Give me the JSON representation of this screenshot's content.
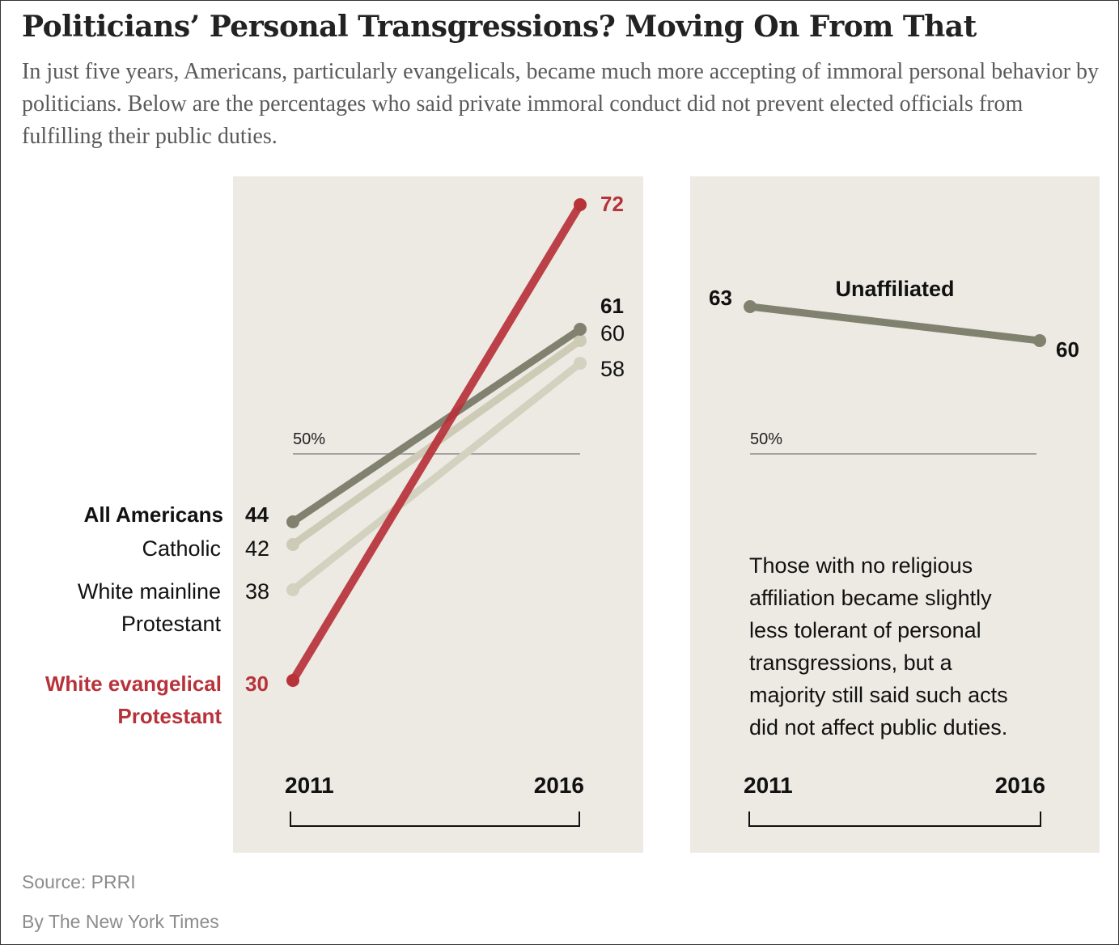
{
  "title": "Politicians’ Personal Transgressions? Moving On From That",
  "subtitle": "In just five years, Americans, particularly evangelicals, became much more accepting of immoral personal behavior by politicians. Below are the percentages who said private immoral conduct did not prevent elected officials from fulfilling their public duties.",
  "source": "Source: PRRI",
  "credit": "By The New York Times",
  "colors": {
    "panel_bg": "#eceae3",
    "all_americans": "#80826f",
    "catholic": "#cdcbb6",
    "white_mainline": "#d3d1bf",
    "white_evangelical": "#b8323a",
    "unaffiliated": "#80826f",
    "reference_line": "#a3a3a3",
    "text_dark": "#111111",
    "text_red": "#b8323a"
  },
  "chart_data": [
    {
      "type": "line",
      "x": [
        "2011",
        "2016"
      ],
      "reference_line": {
        "value": 50,
        "label": "50%"
      },
      "series": [
        {
          "key": "catholic",
          "name": "Catholic",
          "values": [
            42,
            60
          ],
          "labels": [
            "42",
            "60"
          ],
          "bold": false,
          "red": false
        },
        {
          "key": "white_mainline",
          "name_lines": [
            "White mainline",
            "Protestant"
          ],
          "values": [
            38,
            58
          ],
          "labels": [
            "38",
            "58"
          ],
          "bold": false,
          "red": false
        },
        {
          "key": "all_americans",
          "name": "All Americans",
          "values": [
            44,
            61
          ],
          "labels": [
            "44",
            "61"
          ],
          "bold": true,
          "red": false
        },
        {
          "key": "white_evangelical",
          "name_lines": [
            "White evangelical",
            "Protestant"
          ],
          "values": [
            30,
            72
          ],
          "labels": [
            "30",
            "72"
          ],
          "bold": true,
          "red": true
        }
      ]
    },
    {
      "type": "line",
      "x": [
        "2011",
        "2016"
      ],
      "reference_line": {
        "value": 50,
        "label": "50%"
      },
      "series": [
        {
          "key": "unaffiliated",
          "name": "Unaffiliated",
          "values": [
            63,
            60
          ],
          "labels": [
            "63",
            "60"
          ],
          "bold": true,
          "red": false
        }
      ],
      "annotation": [
        "Those with no religious",
        "affiliation became slightly",
        "less tolerant of personal",
        "transgressions, but a",
        "majority still said such acts",
        "did not affect public duties."
      ]
    }
  ]
}
